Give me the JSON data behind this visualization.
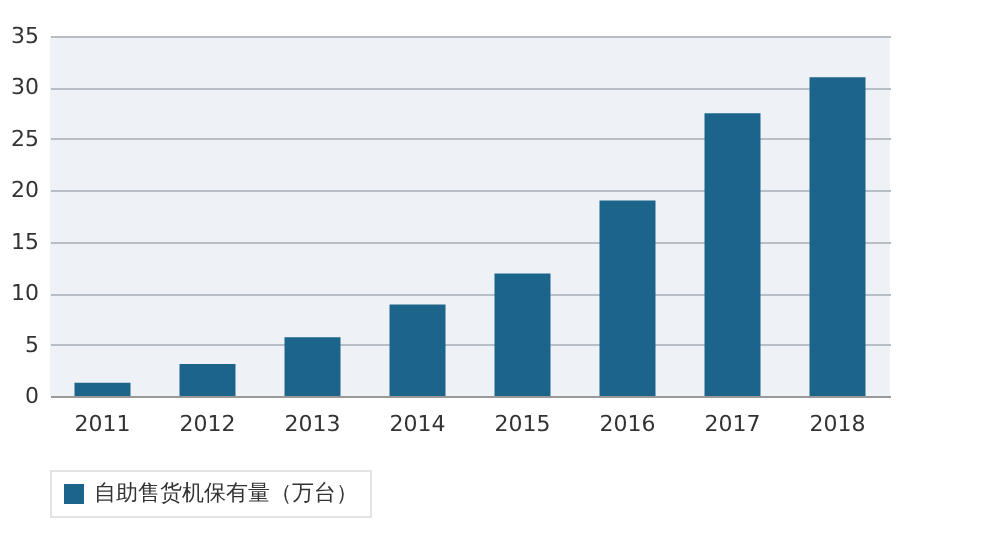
{
  "chart_data": {
    "type": "bar",
    "categories": [
      "2011",
      "2012",
      "2013",
      "2014",
      "2015",
      "2016",
      "2017",
      "2018"
    ],
    "series": [
      {
        "name": "自助售货机保有量（万台）",
        "color": "#1c6489",
        "values": [
          1.3,
          3.1,
          5.7,
          8.9,
          11.9,
          19.0,
          27.5,
          31.0
        ]
      }
    ],
    "ylim": [
      0,
      35
    ],
    "yticks": [
      0,
      5,
      10,
      15,
      20,
      25,
      30,
      35
    ],
    "grid": "y",
    "legend": "bottom"
  }
}
